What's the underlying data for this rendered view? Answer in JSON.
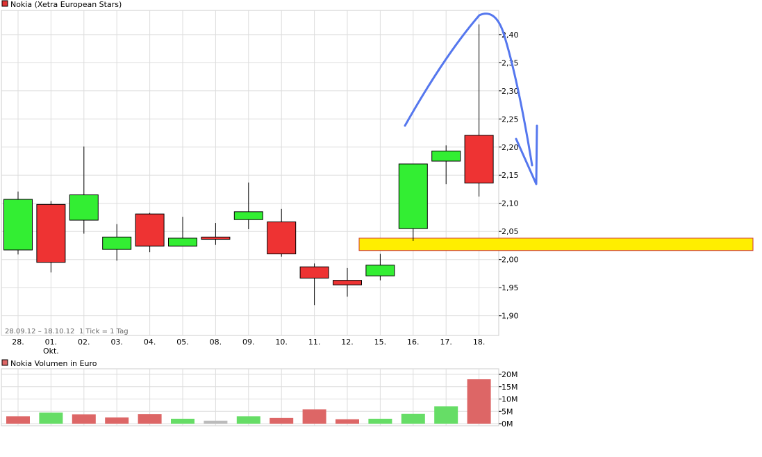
{
  "chart_data": [
    {
      "type": "candlestick",
      "title": "Nokia (Xetra European Stars)",
      "title_color": "#e03333",
      "date_range_label": "28.09.12 – 18.10.12",
      "tick_label": "1 Tick = 1 Tag",
      "categories": [
        "28.",
        "01.",
        "02.",
        "03.",
        "04.",
        "05.",
        "08.",
        "09.",
        "10.",
        "11.",
        "12.",
        "15.",
        "16.",
        "17.",
        "18."
      ],
      "x_sub_labels": [
        "",
        "Okt.",
        "",
        "",
        "",
        "",
        "",
        "",
        "",
        "",
        "",
        "",
        "",
        "",
        ""
      ],
      "open": [
        2.017,
        2.098,
        2.07,
        2.018,
        2.081,
        2.024,
        2.04,
        2.071,
        2.067,
        1.987,
        1.963,
        1.971,
        2.055,
        2.175,
        2.221
      ],
      "high": [
        2.121,
        2.104,
        2.201,
        2.063,
        2.083,
        2.076,
        2.065,
        2.137,
        2.09,
        1.993,
        1.985,
        2.01,
        2.169,
        2.203,
        2.418
      ],
      "low": [
        2.009,
        1.977,
        2.046,
        1.998,
        2.013,
        2.024,
        2.026,
        2.054,
        2.005,
        1.919,
        1.934,
        1.963,
        2.033,
        2.134,
        2.112
      ],
      "close": [
        2.107,
        1.995,
        2.115,
        2.04,
        2.024,
        2.038,
        2.036,
        2.085,
        2.01,
        1.967,
        1.955,
        1.99,
        2.17,
        2.193,
        2.136
      ],
      "y_ticks": [
        "1,90",
        "1,95",
        "2,00",
        "2,05",
        "2,10",
        "2,15",
        "2,20",
        "2,25",
        "2,30",
        "2,35",
        "2,40"
      ],
      "y_tick_values": [
        1.9,
        1.95,
        2.0,
        2.05,
        2.1,
        2.15,
        2.2,
        2.25,
        2.3,
        2.35,
        2.4
      ],
      "ylim": [
        1.865,
        2.443
      ],
      "grid": true,
      "colors": {
        "up": "#33ee33",
        "down": "#ee3333",
        "grid": "#dddddd"
      },
      "annotations": [
        {
          "type": "horizontal-band",
          "from": 2.016,
          "to": 2.038,
          "color": "#ffee00",
          "border": "#cc3333"
        },
        {
          "type": "freehand-arrow",
          "color": "#5577ee"
        }
      ]
    },
    {
      "type": "bar",
      "title": "Nokia Volumen in Euro",
      "title_color": "#dd6666",
      "categories": [
        "28.",
        "01.",
        "02.",
        "03.",
        "04.",
        "05.",
        "08.",
        "09.",
        "10.",
        "11.",
        "12.",
        "15.",
        "16.",
        "17.",
        "18."
      ],
      "values": [
        3.0,
        4.5,
        3.8,
        2.5,
        3.9,
        2.0,
        1.2,
        3.0,
        2.3,
        5.8,
        1.8,
        2.0,
        4.0,
        7.0,
        18.0
      ],
      "bar_colors": [
        "#dd6666",
        "#66dd66",
        "#dd6666",
        "#dd6666",
        "#dd6666",
        "#66dd66",
        "#bbbbbb",
        "#66dd66",
        "#dd6666",
        "#dd6666",
        "#dd6666",
        "#66dd66",
        "#66dd66",
        "#66dd66",
        "#dd6666"
      ],
      "y_ticks": [
        "0M",
        "5M",
        "10M",
        "15M",
        "20M"
      ],
      "y_tick_values": [
        0,
        5,
        10,
        15,
        20
      ],
      "ylim": [
        0,
        20
      ],
      "unit": "Mio. Euro",
      "grid": true
    }
  ]
}
